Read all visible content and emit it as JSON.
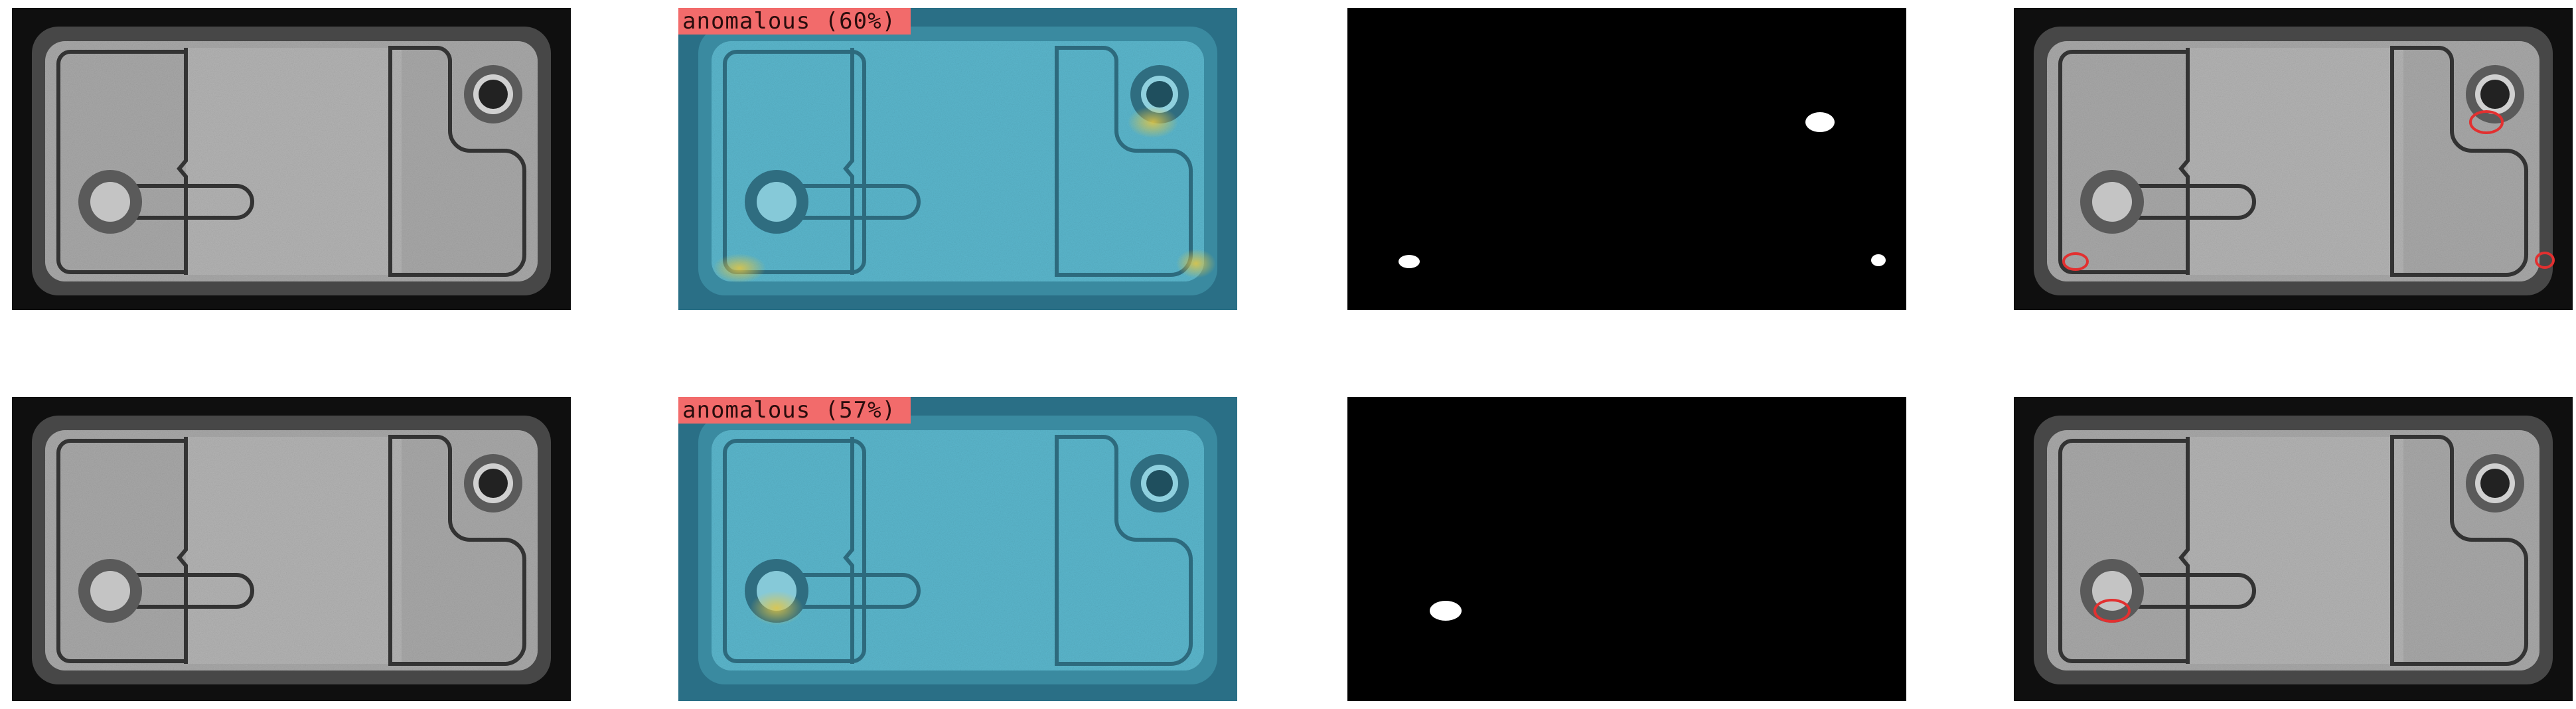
{
  "rows": [
    {
      "badge": "anomalous (60%)"
    },
    {
      "badge": "anomalous (57%)"
    }
  ],
  "colors": {
    "background": "#ffffff",
    "badge": "#f26b6b",
    "heatmap": "#55b3c9",
    "hotspot": "#d8c64a",
    "mask_bg": "#000000",
    "mask_blob": "#ffffff",
    "marker": "#e23030"
  }
}
